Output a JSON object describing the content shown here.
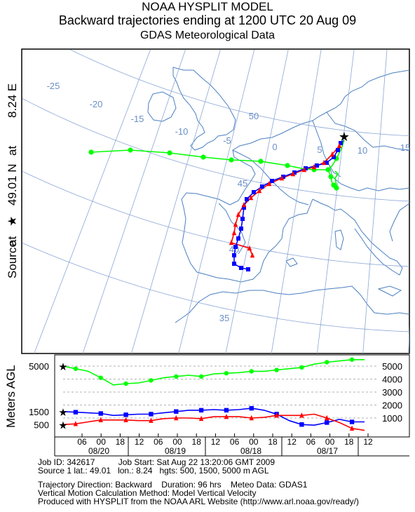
{
  "header": {
    "line1": "NOAA HYSPLIT MODEL",
    "line2": "Backward trajectories ending at 1200 UTC 20 Aug 09",
    "line3": "GDAS Meteorological Data"
  },
  "source_label": {
    "lon": "8.24 E",
    "at1": "at",
    "lat": "49.01 N",
    "at2": "at",
    "source": "Source"
  },
  "colors": {
    "red": "#ff0000",
    "blue": "#0000ff",
    "green": "#00ff00",
    "grid": "#6a8fc8",
    "coast": "#4a7fc0"
  },
  "chart_data": [
    {
      "type": "line",
      "description_id": "map",
      "graticule_longitude_labels": [
        "-25",
        "-20",
        "-15",
        "-10",
        "-5",
        "0",
        "5",
        "10",
        "15"
      ],
      "graticule_latitude_labels": [
        "50",
        "45",
        "40",
        "35"
      ],
      "source": {
        "lat": 49.01,
        "lon": 8.24
      },
      "series": [
        {
          "color": "red",
          "marker": "triangle"
        },
        {
          "color": "blue",
          "marker": "square"
        },
        {
          "color": "green",
          "marker": "circle"
        }
      ]
    },
    {
      "type": "line",
      "description_id": "vertical-profile",
      "ylabel": "Meters AGL",
      "left_ticks": [
        "5000",
        "1500",
        "500"
      ],
      "right_ticks": [
        "5000",
        "4000",
        "3000",
        "2000",
        "1000"
      ],
      "x_hour_labels": [
        "06",
        "00",
        "18",
        "12",
        "06",
        "00",
        "18",
        "12",
        "06",
        "00",
        "18",
        "12",
        "06",
        "00",
        "18",
        "12"
      ],
      "date_labels": [
        "08/20",
        "08/19",
        "08/18",
        "08/17"
      ],
      "series": [
        {
          "color": "green",
          "marker": "circle",
          "start": 5000,
          "values": [
            5000,
            4800,
            4600,
            4100,
            3550,
            3650,
            3700,
            3900,
            4100,
            4200,
            4300,
            4200,
            4400,
            4450,
            4500,
            4600,
            4600,
            4700,
            4800,
            4900,
            5150,
            5300,
            5400,
            5500,
            5500
          ]
        },
        {
          "color": "blue",
          "marker": "square",
          "start": 1500,
          "values": [
            1500,
            1450,
            1400,
            1350,
            1200,
            1250,
            1300,
            1300,
            1400,
            1500,
            1600,
            1600,
            1650,
            1600,
            1650,
            1750,
            1600,
            1300,
            800,
            500,
            450,
            650,
            900,
            700,
            700
          ]
        },
        {
          "color": "red",
          "marker": "triangle",
          "start": 500,
          "values": [
            500,
            550,
            700,
            850,
            850,
            850,
            800,
            800,
            950,
            1000,
            1000,
            950,
            1100,
            1100,
            1100,
            1000,
            1050,
            1200,
            1200,
            1200,
            1300,
            1000,
            650,
            200,
            50
          ]
        }
      ]
    }
  ],
  "footer": {
    "line1": "Job ID: 342617          Job Start: Sat Aug 22 13:20:06 GMT 2009",
    "line2": "Source 1 lat.: 49.01   lon.: 8.24   hgts: 500, 1500, 5000 m AGL",
    "line3": "Trajectory Direction: Backward    Duration: 96 hrs    Meteo Data: GDAS1",
    "line4": "Vertical Motion Calculation Method: Model Vertical Velocity",
    "line5": "Produced with HYSPLIT from the NOAA ARL Website (http://www.arl.noaa.gov/ready/)"
  }
}
